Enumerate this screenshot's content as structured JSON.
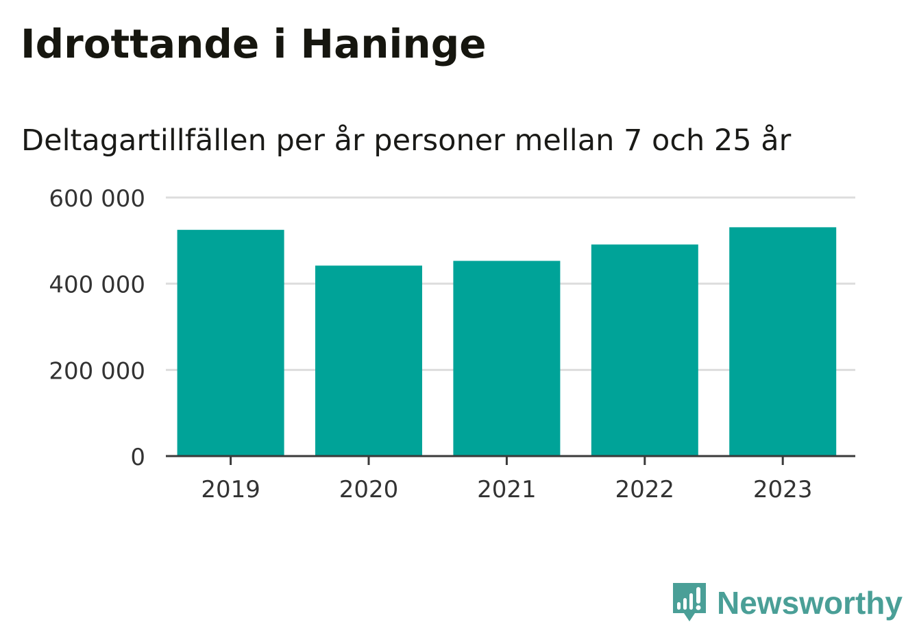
{
  "chart_data": {
    "type": "bar",
    "title": "Idrottande i Haninge",
    "subtitle": "Deltagartillfällen per år personer mellan 7 och 25 år",
    "categories": [
      "2019",
      "2020",
      "2021",
      "2022",
      "2023"
    ],
    "values": [
      525000,
      442000,
      453000,
      491000,
      531000
    ],
    "ylim": [
      0,
      600000
    ],
    "yticks": [
      0,
      200000,
      400000,
      600000
    ],
    "ytick_labels": [
      "0",
      "200 000",
      "400 000",
      "600 000"
    ],
    "xlabel": "",
    "ylabel": "",
    "grid": true,
    "colors": {
      "bar": "#00a398",
      "grid": "#dddddd",
      "axis": "#3a3a3a",
      "tick_text": "#333333"
    }
  },
  "brand": {
    "name": "Newsworthy",
    "color": "#4a9f97",
    "icon": "bar-chart-speech-bubble-icon"
  }
}
